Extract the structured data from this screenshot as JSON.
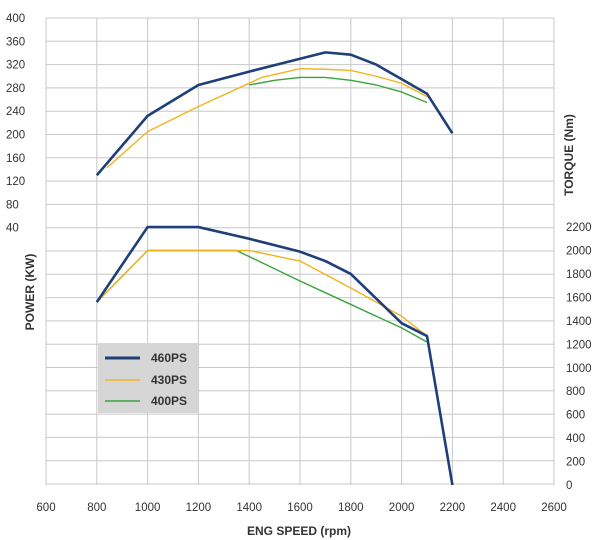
{
  "chart_data": {
    "type": "line",
    "xlabel": "ENG SPEED (rpm)",
    "ylabel_left": "POWER (KW)",
    "ylabel_right": "TORQUE (Nm)",
    "xlim": [
      600,
      2600
    ],
    "x_ticks": [
      "600",
      "800",
      "1000",
      "1200",
      "1400",
      "1600",
      "1800",
      "2000",
      "2200",
      "2400",
      "2600"
    ],
    "power_axis": {
      "range": [
        0,
        400
      ],
      "ticks": [
        "40",
        "80",
        "120",
        "160",
        "200",
        "240",
        "280",
        "320",
        "360",
        "400"
      ]
    },
    "torque_axis": {
      "range": [
        0,
        2200
      ],
      "ticks": [
        "0",
        "200",
        "400",
        "600",
        "800",
        "1000",
        "1200",
        "1400",
        "1600",
        "1800",
        "2000",
        "2200"
      ]
    },
    "grid": true,
    "legend_position": "lower-left",
    "colors": {
      "460PS": "#1f3f78",
      "430PS": "#f2b320",
      "400PS": "#3aa23a",
      "grid": "#c8c8c8",
      "legend_bg": "#d6d6d6"
    },
    "series": [
      {
        "name": "460PS",
        "power": {
          "x": [
            800,
            1000,
            1200,
            1400,
            1600,
            1700,
            1800,
            1900,
            2000,
            2100,
            2200
          ],
          "y": [
            130,
            232,
            285,
            308,
            330,
            341,
            337,
            320,
            295,
            270,
            202
          ]
        },
        "torque": {
          "x": [
            800,
            1000,
            1200,
            1400,
            1600,
            1700,
            1800,
            1900,
            2000,
            2100,
            2200
          ],
          "y": [
            1560,
            2200,
            2200,
            2100,
            1990,
            1910,
            1800,
            1590,
            1380,
            1270,
            0
          ]
        }
      },
      {
        "name": "430PS",
        "power": {
          "x": [
            840,
            1000,
            1200,
            1450,
            1600,
            1700,
            1800,
            1900,
            2000,
            2100
          ],
          "y": [
            143,
            205,
            248,
            298,
            313,
            312,
            310,
            300,
            288,
            265
          ]
        },
        "torque": {
          "x": [
            800,
            1000,
            1200,
            1400,
            1600,
            1800,
            2000,
            2100
          ],
          "y": [
            1560,
            2000,
            2000,
            2000,
            1910,
            1680,
            1440,
            1270
          ]
        }
      },
      {
        "name": "400PS",
        "power": {
          "x": [
            1400,
            1500,
            1600,
            1700,
            1800,
            1900,
            2000,
            2100
          ],
          "y": [
            285,
            293,
            298,
            298,
            293,
            285,
            273,
            255
          ]
        },
        "torque": {
          "x": [
            800,
            1000,
            1200,
            1350,
            1600,
            1800,
            2000,
            2100
          ],
          "y": [
            1560,
            2000,
            2000,
            2000,
            1740,
            1540,
            1340,
            1220
          ]
        }
      }
    ]
  }
}
